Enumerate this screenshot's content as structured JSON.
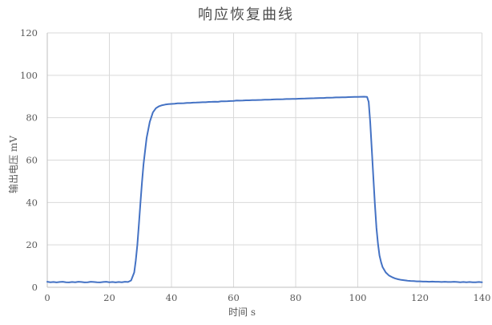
{
  "chart_data": {
    "type": "line",
    "title": "响应恢复曲线",
    "xlabel": "时间 s",
    "ylabel": "输出电压 mV",
    "xlim": [
      0,
      140
    ],
    "ylim": [
      0,
      120
    ],
    "xticks": [
      0,
      20,
      40,
      60,
      80,
      100,
      120,
      140
    ],
    "yticks": [
      0,
      20,
      40,
      60,
      80,
      100,
      120
    ],
    "grid": true,
    "legend": false,
    "colors": {
      "line": "#4472C4",
      "gridline": "#D9D9D9",
      "axis_line": "#BFBFBF",
      "label": "#595959"
    },
    "series_name": "响应恢复曲线",
    "x": [
      0,
      1,
      2,
      3,
      4,
      5,
      6,
      7,
      8,
      9,
      10,
      11,
      12,
      13,
      14,
      15,
      16,
      17,
      18,
      19,
      20,
      21,
      22,
      23,
      24,
      25,
      26,
      27,
      28,
      28.5,
      29,
      29.5,
      30,
      30.5,
      31,
      31.5,
      32,
      33,
      34,
      35,
      36,
      37,
      38,
      39,
      40,
      41,
      42,
      43,
      44,
      45,
      46,
      47,
      48,
      49,
      50,
      51,
      52,
      53,
      54,
      55,
      56,
      57,
      58,
      59,
      60,
      61,
      62,
      63,
      64,
      65,
      66,
      67,
      68,
      69,
      70,
      71,
      72,
      73,
      74,
      75,
      76,
      77,
      78,
      79,
      80,
      81,
      82,
      83,
      84,
      85,
      86,
      87,
      88,
      89,
      90,
      91,
      92,
      93,
      94,
      95,
      96,
      97,
      98,
      99,
      100,
      101,
      102,
      103,
      103.5,
      104,
      104.5,
      105,
      105.5,
      106,
      106.5,
      107,
      107.5,
      108,
      109,
      110,
      111,
      112,
      113,
      114,
      115,
      116,
      117,
      118,
      119,
      120,
      121,
      122,
      123,
      124,
      125,
      126,
      127,
      128,
      129,
      130,
      131,
      132,
      133,
      134,
      135,
      136,
      137,
      138,
      139,
      140
    ],
    "values": [
      2.6,
      2.4,
      2.5,
      2.3,
      2.5,
      2.6,
      2.4,
      2.3,
      2.5,
      2.4,
      2.6,
      2.5,
      2.3,
      2.4,
      2.6,
      2.5,
      2.4,
      2.3,
      2.5,
      2.6,
      2.4,
      2.5,
      2.3,
      2.5,
      2.4,
      2.6,
      2.5,
      3.2,
      7,
      12.5,
      20,
      29.5,
      40,
      49.5,
      58,
      64.5,
      70.5,
      78,
      82.5,
      84.5,
      85.4,
      85.9,
      86.2,
      86.4,
      86.5,
      86.6,
      86.75,
      86.8,
      86.85,
      87.0,
      86.95,
      87.1,
      87.15,
      87.2,
      87.3,
      87.3,
      87.45,
      87.5,
      87.55,
      87.5,
      87.7,
      87.75,
      87.8,
      87.85,
      87.9,
      88.1,
      88.05,
      88.1,
      88.2,
      88.2,
      88.3,
      88.3,
      88.35,
      88.4,
      88.5,
      88.5,
      88.55,
      88.6,
      88.65,
      88.7,
      88.75,
      88.8,
      88.8,
      88.85,
      88.9,
      88.95,
      89.0,
      89.05,
      89.1,
      89.15,
      89.2,
      89.25,
      89.3,
      89.3,
      89.4,
      89.45,
      89.5,
      89.55,
      89.55,
      89.6,
      89.65,
      89.7,
      89.75,
      89.8,
      89.8,
      89.85,
      89.9,
      89.8,
      87.5,
      78,
      65.5,
      52,
      39.5,
      28,
      20.5,
      15,
      11.8,
      9.5,
      7,
      5.6,
      4.8,
      4.2,
      3.8,
      3.5,
      3.3,
      3.1,
      3.0,
      2.9,
      2.8,
      2.8,
      2.7,
      2.7,
      2.6,
      2.7,
      2.6,
      2.6,
      2.5,
      2.6,
      2.5,
      2.5,
      2.6,
      2.5,
      2.4,
      2.5,
      2.4,
      2.5,
      2.4,
      2.4,
      2.5,
      2.4
    ]
  }
}
